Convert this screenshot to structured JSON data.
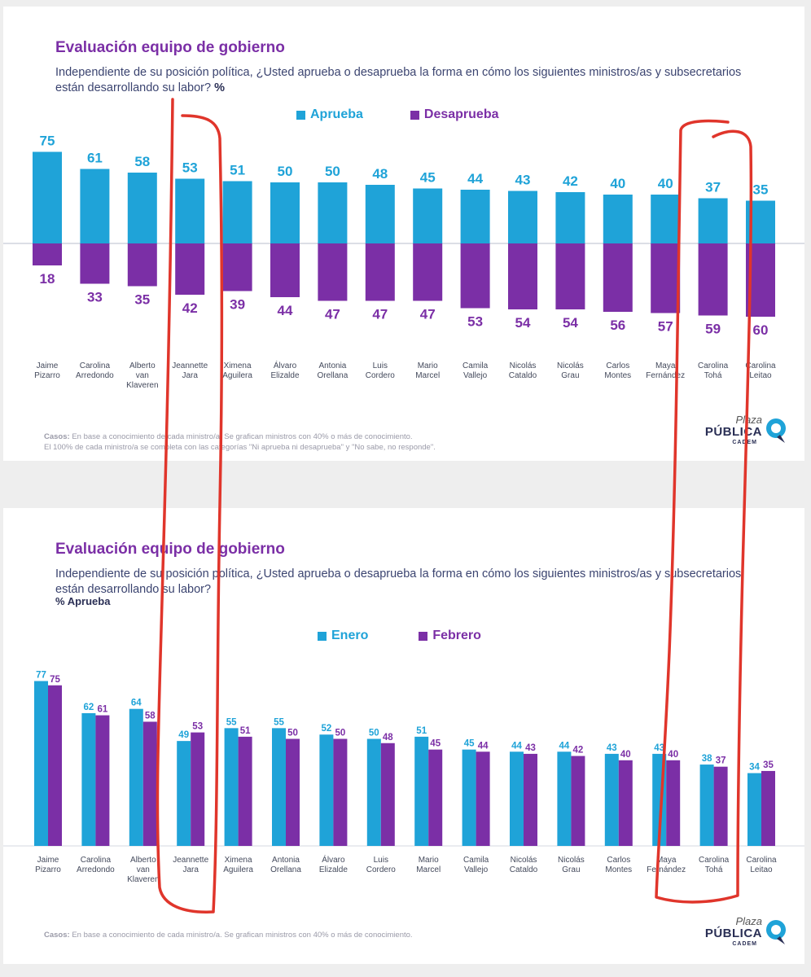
{
  "colors": {
    "aprueba": "#1fa3d8",
    "desaprueba": "#7b2fa6",
    "enero": "#1fa3d8",
    "febrero": "#7b2fa6",
    "title": "#7b2fa6",
    "annotation": "#e0352b"
  },
  "top": {
    "title": "Evaluación equipo de gobierno",
    "subtitle": "Independiente de su posición política, ¿Usted aprueba o desaprueba la forma en cómo los siguientes ministros/as y subsecretarios están desarrollando su labor?",
    "unit": "%",
    "legend": {
      "aprueba": "Aprueba",
      "desaprueba": "Desaprueba"
    },
    "footnote": {
      "label": "Casos:",
      "line1": "En base a conocimiento de cada ministro/a. Se grafican ministros con 40% o más de conocimiento.",
      "line2": "El 100% de cada ministro/a se completa con las categorías \"Ni aprueba ni desaprueba\" y \"No sabe, no responde\"."
    },
    "logo": {
      "line1": "Plaza",
      "line2": "PÚBLICA",
      "line3": "CADEM"
    }
  },
  "bottom": {
    "title": "Evaluación equipo de gobierno",
    "subtitle": "Independiente de su posición política, ¿Usted aprueba o desaprueba la forma en cómo los siguientes ministros/as y subsecretarios están desarrollando su labor?",
    "unit": "% Aprueba",
    "legend": {
      "enero": "Enero",
      "febrero": "Febrero"
    },
    "footnote": {
      "label": "Casos:",
      "line1": "En base a conocimiento de cada ministro/a. Se grafican ministros con 40% o más de conocimiento."
    },
    "logo": {
      "line1": "Plaza",
      "line2": "PÚBLICA",
      "line3": "CADEM"
    }
  },
  "chart_data": [
    {
      "type": "bar",
      "categories": [
        [
          "Jaime",
          "Pizarro"
        ],
        [
          "Carolina",
          "Arredondo"
        ],
        [
          "Alberto",
          "van",
          "Klaveren"
        ],
        [
          "Jeannette",
          "Jara"
        ],
        [
          "Ximena",
          "Aguilera"
        ],
        [
          "Álvaro",
          "Elizalde"
        ],
        [
          "Antonia",
          "Orellana"
        ],
        [
          "Luis",
          "Cordero"
        ],
        [
          "Mario",
          "Marcel"
        ],
        [
          "Camila",
          "Vallejo"
        ],
        [
          "Nicolás",
          "Cataldo"
        ],
        [
          "Nicolás",
          "Grau"
        ],
        [
          "Carlos",
          "Montes"
        ],
        [
          "Maya",
          "Fernández"
        ],
        [
          "Carolina",
          "Tohá"
        ],
        [
          "Carolina",
          "Leitao"
        ]
      ],
      "series": [
        {
          "name": "Aprueba",
          "values": [
            75,
            61,
            58,
            53,
            51,
            50,
            50,
            48,
            45,
            44,
            43,
            42,
            40,
            40,
            37,
            35
          ]
        },
        {
          "name": "Desaprueba",
          "values": [
            18,
            33,
            35,
            42,
            39,
            44,
            47,
            47,
            47,
            53,
            54,
            54,
            56,
            57,
            59,
            60
          ]
        }
      ]
    },
    {
      "type": "bar",
      "categories": [
        [
          "Jaime",
          "Pizarro"
        ],
        [
          "Carolina",
          "Arredondo"
        ],
        [
          "Alberto",
          "van",
          "Klaveren"
        ],
        [
          "Jeannette",
          "Jara"
        ],
        [
          "Ximena",
          "Aguilera"
        ],
        [
          "Antonia",
          "Orellana"
        ],
        [
          "Álvaro",
          "Elizalde"
        ],
        [
          "Luis",
          "Cordero"
        ],
        [
          "Mario",
          "Marcel"
        ],
        [
          "Camila",
          "Vallejo"
        ],
        [
          "Nicolás",
          "Cataldo"
        ],
        [
          "Nicolás",
          "Grau"
        ],
        [
          "Carlos",
          "Montes"
        ],
        [
          "Maya",
          "Fernández"
        ],
        [
          "Carolina",
          "Tohá"
        ],
        [
          "Carolina",
          "Leitao"
        ]
      ],
      "series": [
        {
          "name": "Enero",
          "values": [
            77,
            62,
            64,
            49,
            55,
            55,
            52,
            50,
            51,
            45,
            44,
            44,
            43,
            43,
            38,
            34
          ]
        },
        {
          "name": "Febrero",
          "values": [
            75,
            61,
            58,
            53,
            51,
            50,
            50,
            48,
            45,
            44,
            43,
            42,
            40,
            40,
            37,
            35
          ]
        }
      ]
    }
  ]
}
